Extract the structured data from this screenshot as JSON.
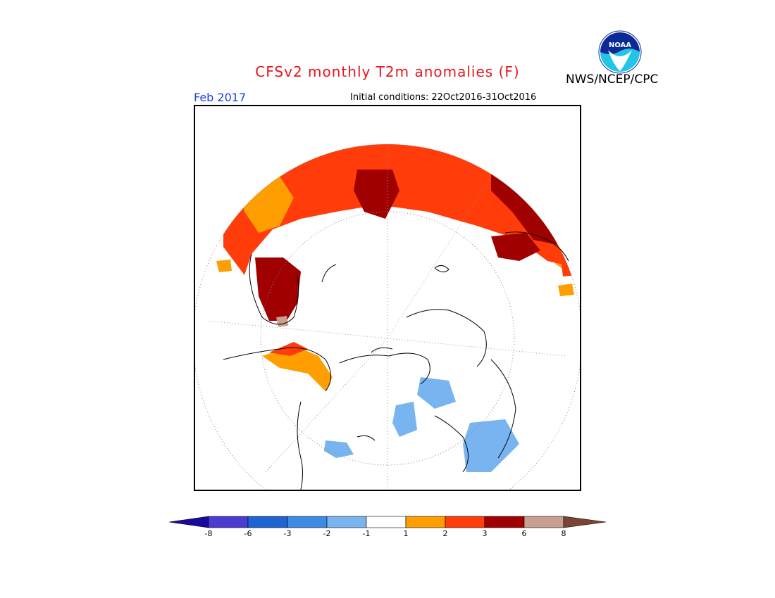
{
  "title": "CFSv2 monthly T2m anomalies (F)",
  "agency": "NWS/NCEP/CPC",
  "logo_text": "NOAA",
  "forecast_month": "Feb 2017",
  "initial_conditions": {
    "label": "Initial conditions:",
    "value": "22Oct2016-31Oct2016"
  },
  "colors": {
    "title": "#e8161d",
    "month": "#1c3ee8",
    "scale": [
      "#1a0a9c",
      "#4b3bd0",
      "#1e64d2",
      "#3c8ce6",
      "#78b4f0",
      "#ffffff",
      "#ff9e00",
      "#ff3c0a",
      "#a00000",
      "#c8a090",
      "#784632"
    ]
  },
  "colorbar": {
    "ticks": [
      "-8",
      "-6",
      "-3",
      "-2",
      "-1",
      "1",
      "2",
      "3",
      "6",
      "8"
    ]
  }
}
